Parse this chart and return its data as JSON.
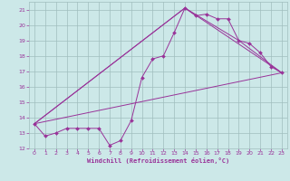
{
  "xlabel": "Windchill (Refroidissement éolien,°C)",
  "bg_color": "#cce8e8",
  "grid_color": "#a0bebe",
  "line_color": "#993399",
  "xlim": [
    -0.5,
    23.5
  ],
  "ylim": [
    12,
    21.5
  ],
  "xticks": [
    0,
    1,
    2,
    3,
    4,
    5,
    6,
    7,
    8,
    9,
    10,
    11,
    12,
    13,
    14,
    15,
    16,
    17,
    18,
    19,
    20,
    21,
    22,
    23
  ],
  "yticks": [
    12,
    13,
    14,
    15,
    16,
    17,
    18,
    19,
    20,
    21
  ],
  "series": [
    [
      0,
      13.6
    ],
    [
      1,
      12.8
    ],
    [
      2,
      13.0
    ],
    [
      3,
      13.3
    ],
    [
      4,
      13.3
    ],
    [
      5,
      13.3
    ],
    [
      6,
      13.3
    ],
    [
      7,
      12.2
    ],
    [
      8,
      12.5
    ],
    [
      9,
      13.8
    ],
    [
      10,
      16.6
    ],
    [
      11,
      17.8
    ],
    [
      12,
      18.0
    ],
    [
      13,
      19.5
    ],
    [
      14,
      21.1
    ],
    [
      15,
      20.6
    ],
    [
      16,
      20.7
    ],
    [
      17,
      20.4
    ],
    [
      18,
      20.4
    ],
    [
      19,
      19.0
    ],
    [
      20,
      18.8
    ],
    [
      21,
      18.2
    ],
    [
      22,
      17.3
    ],
    [
      23,
      16.9
    ]
  ],
  "linear_series": [
    [
      0,
      13.6
    ],
    [
      23,
      16.9
    ]
  ],
  "linear_series2": [
    [
      0,
      13.6
    ],
    [
      14,
      21.1
    ],
    [
      23,
      16.9
    ]
  ],
  "linear_series3": [
    [
      0,
      13.6
    ],
    [
      14,
      21.1
    ],
    [
      19,
      19.0
    ],
    [
      23,
      16.9
    ]
  ]
}
